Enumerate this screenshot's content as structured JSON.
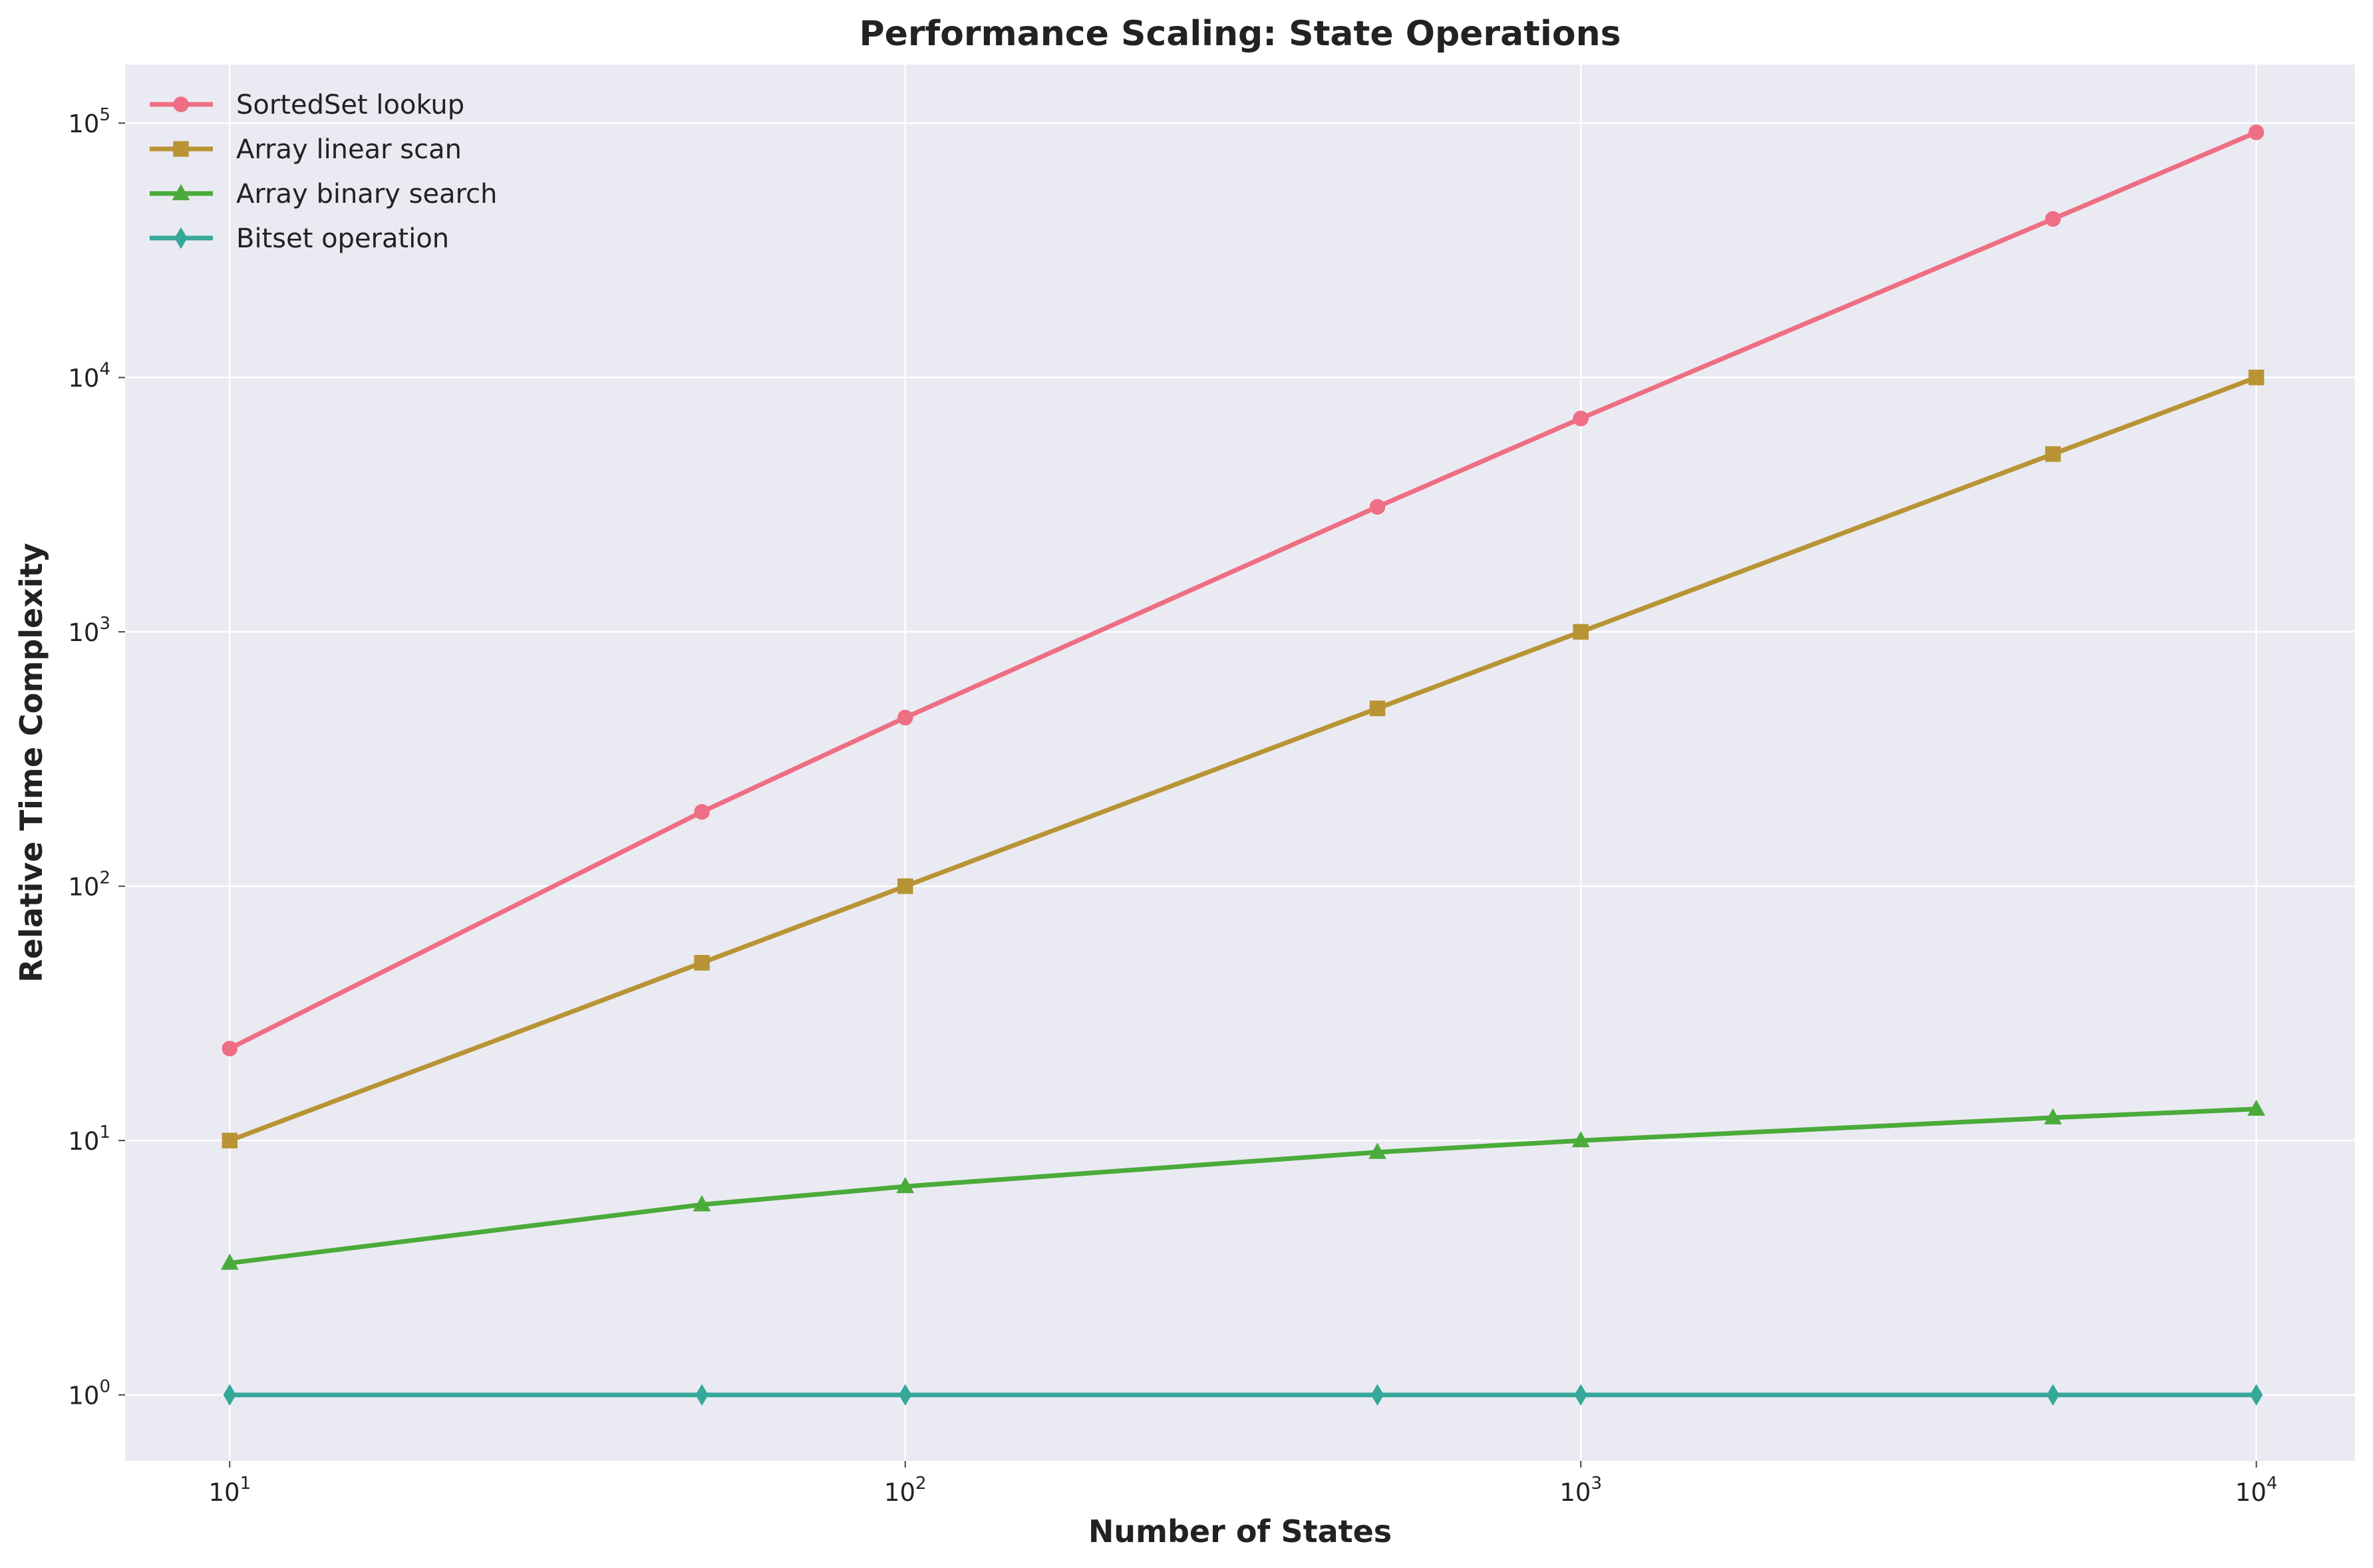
{
  "chart_data": {
    "type": "line",
    "title": "Performance Scaling: State Operations",
    "xlabel": "Number of States",
    "ylabel": "Relative Time Complexity",
    "xscale": "log",
    "yscale": "log",
    "xlim": [
      7,
      14000
    ],
    "ylim": [
      0.55,
      170000
    ],
    "x_ticks": [
      {
        "value": 10,
        "base": "10",
        "exp": "1"
      },
      {
        "value": 100,
        "base": "10",
        "exp": "2"
      },
      {
        "value": 1000,
        "base": "10",
        "exp": "3"
      },
      {
        "value": 10000,
        "base": "10",
        "exp": "4"
      }
    ],
    "y_ticks": [
      {
        "value": 1,
        "base": "10",
        "exp": "0"
      },
      {
        "value": 10,
        "base": "10",
        "exp": "1"
      },
      {
        "value": 100,
        "base": "10",
        "exp": "2"
      },
      {
        "value": 1000,
        "base": "10",
        "exp": "3"
      },
      {
        "value": 10000,
        "base": "10",
        "exp": "4"
      },
      {
        "value": 100000,
        "base": "10",
        "exp": "5"
      }
    ],
    "grid": true,
    "legend_position": "top-left",
    "x": [
      10,
      50,
      100,
      500,
      1000,
      5000,
      10000
    ],
    "series": [
      {
        "name": "SortedSet lookup",
        "color": "#ee6e84",
        "marker": "circle",
        "values": [
          23,
          196,
          460,
          3100,
          6900,
          42000,
          92000
        ]
      },
      {
        "name": "Array linear scan",
        "color": "#b89435",
        "marker": "square",
        "values": [
          10,
          50,
          100,
          500,
          1000,
          5000,
          10000
        ]
      },
      {
        "name": "Array binary search",
        "color": "#4aab3a",
        "marker": "triangle",
        "values": [
          3.3,
          5.6,
          6.6,
          9.0,
          10.0,
          12.3,
          13.3
        ]
      },
      {
        "name": "Bitset operation",
        "color": "#36a89a",
        "marker": "diamond",
        "values": [
          1,
          1,
          1,
          1,
          1,
          1,
          1
        ]
      }
    ],
    "colors": {
      "plot_background": "#eaeaf2",
      "grid": "#ffffff"
    }
  }
}
